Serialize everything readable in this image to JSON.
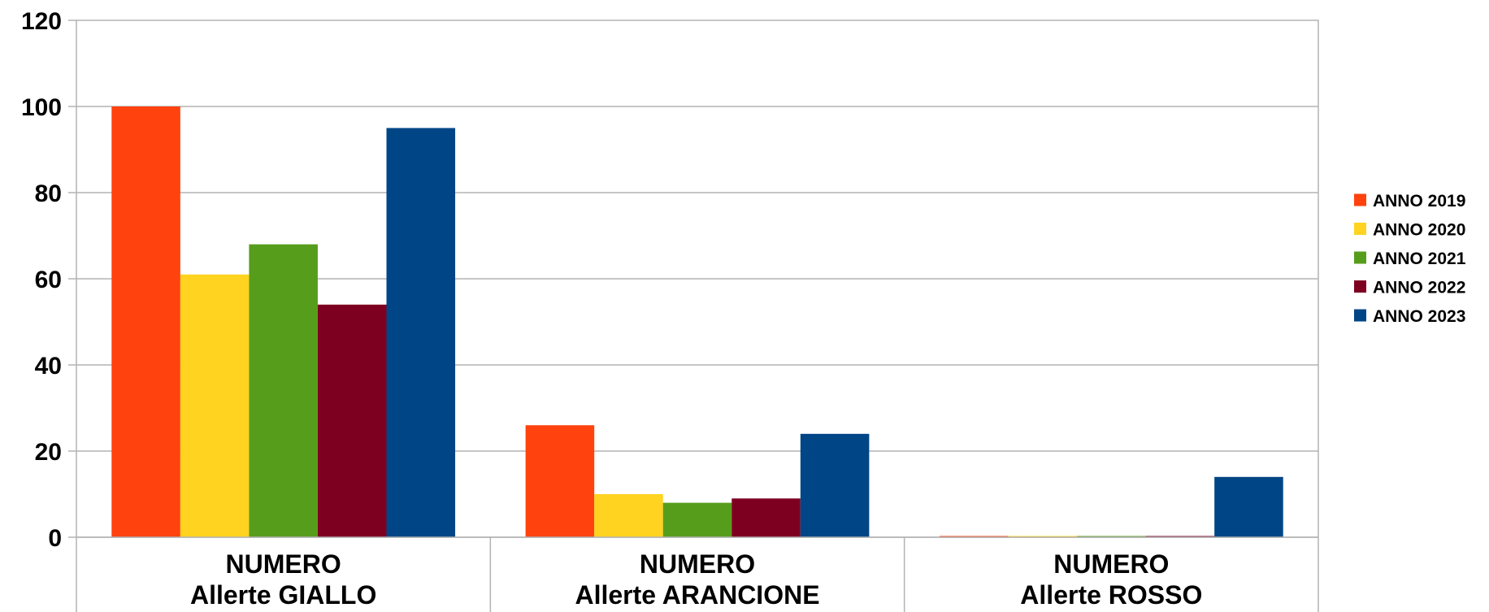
{
  "chart_data": {
    "type": "bar",
    "categories": [
      [
        "NUMERO",
        "Allerte GIALLO"
      ],
      [
        "NUMERO",
        "Allerte ARANCIONE"
      ],
      [
        "NUMERO",
        "Allerte ROSSO"
      ]
    ],
    "series": [
      {
        "name": "ANNO 2019",
        "color": "#ff420e",
        "values": [
          100,
          26,
          0
        ]
      },
      {
        "name": "ANNO 2020",
        "color": "#ffd320",
        "values": [
          61,
          10,
          0
        ]
      },
      {
        "name": "ANNO 2021",
        "color": "#579d1c",
        "values": [
          68,
          8,
          0
        ]
      },
      {
        "name": "ANNO 2022",
        "color": "#7e0021",
        "values": [
          54,
          9,
          0
        ]
      },
      {
        "name": "ANNO 2023",
        "color": "#004586",
        "values": [
          95,
          24,
          14
        ]
      }
    ],
    "y_ticks": [
      "0",
      "20",
      "40",
      "60",
      "80",
      "100",
      "120"
    ],
    "ylim": [
      0,
      120
    ],
    "grid": true,
    "legend_position": "right",
    "title": "",
    "xlabel": "",
    "ylabel": ""
  }
}
